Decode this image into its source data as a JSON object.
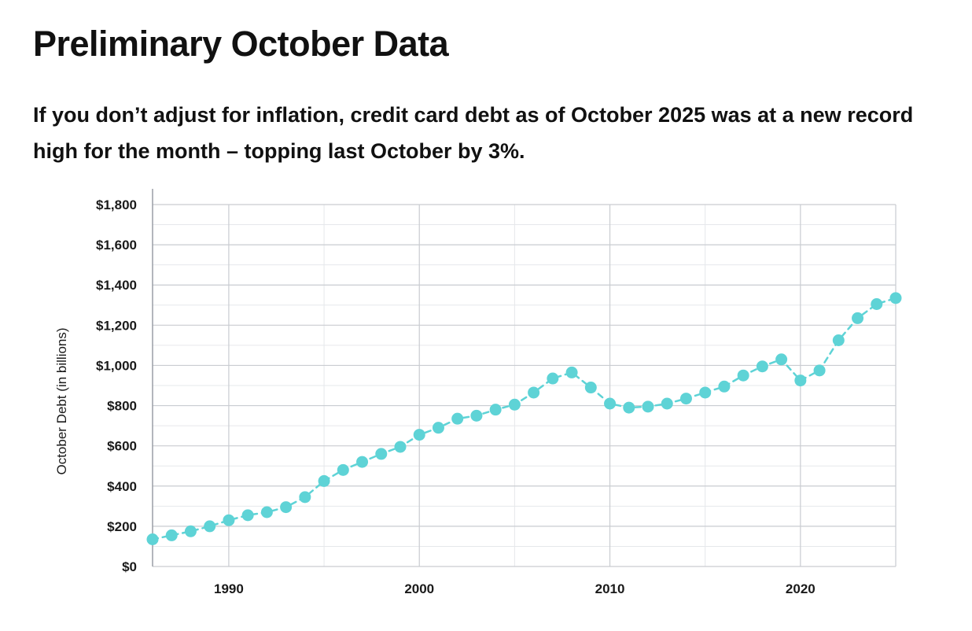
{
  "header": {
    "title": "Preliminary October Data",
    "subtitle": "If you don’t adjust for inflation, credit card debt as of October 2025 was at a new record high for the month – topping last October by 3%."
  },
  "colors": {
    "series": "#5ed3d6",
    "grid_major": "#c9ccd1",
    "grid_minor": "#e6e8eb",
    "text": "#111111"
  },
  "chart_data": {
    "type": "line",
    "title": "",
    "xlabel": "",
    "ylabel": "October Debt (in billions)",
    "xlim": [
      1986,
      2025
    ],
    "ylim": [
      0,
      1800
    ],
    "x_ticks": [
      1990,
      2000,
      2010,
      2020
    ],
    "x_tick_labels": [
      "1990",
      "2000",
      "2010",
      "2020"
    ],
    "y_ticks": [
      0,
      200,
      400,
      600,
      800,
      1000,
      1200,
      1400,
      1600,
      1800
    ],
    "y_tick_labels": [
      "$0",
      "$200",
      "$400",
      "$600",
      "$800",
      "$1,000",
      "$1,200",
      "$1,400",
      "$1,600",
      "$1,800"
    ],
    "grid": true,
    "series": [
      {
        "name": "October Debt",
        "x": [
          1986,
          1987,
          1988,
          1989,
          1990,
          1991,
          1992,
          1993,
          1994,
          1995,
          1996,
          1997,
          1998,
          1999,
          2000,
          2001,
          2002,
          2003,
          2004,
          2005,
          2006,
          2007,
          2008,
          2009,
          2010,
          2011,
          2012,
          2013,
          2014,
          2015,
          2016,
          2017,
          2018,
          2019,
          2020,
          2021,
          2022,
          2023,
          2024,
          2025
        ],
        "values": [
          135,
          155,
          175,
          200,
          230,
          255,
          270,
          295,
          345,
          425,
          480,
          520,
          560,
          595,
          655,
          690,
          735,
          750,
          780,
          805,
          865,
          935,
          965,
          890,
          810,
          790,
          795,
          810,
          835,
          865,
          895,
          950,
          995,
          1030,
          925,
          975,
          1125,
          1235,
          1305,
          1335
        ]
      }
    ]
  }
}
